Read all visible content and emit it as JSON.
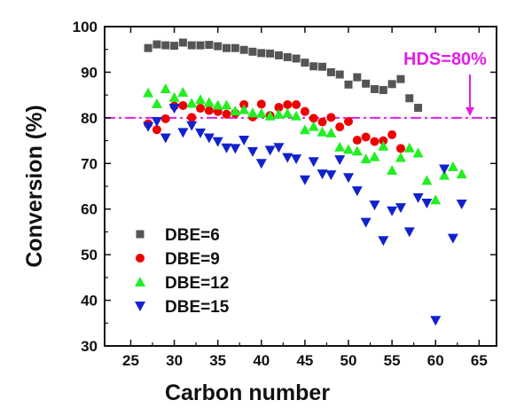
{
  "chart_data": {
    "type": "scatter",
    "xlabel": "Carbon number",
    "ylabel": "Conversion (%)",
    "xlim": [
      22,
      67
    ],
    "ylim": [
      30,
      100
    ],
    "xticks": [
      25,
      30,
      35,
      40,
      45,
      50,
      55,
      60,
      65
    ],
    "yticks": [
      30,
      40,
      50,
      60,
      70,
      80,
      90,
      100
    ],
    "x_tick_labels": [
      "25",
      "30",
      "35",
      "40",
      "45",
      "50",
      "55",
      "60",
      "65"
    ],
    "y_tick_labels": [
      "30",
      "40",
      "50",
      "60",
      "70",
      "80",
      "90",
      "100"
    ],
    "grid": false,
    "legend_position": "lower-left",
    "reference_line": {
      "value": 80,
      "label": "HDS=80%",
      "color": "#e11ee8"
    },
    "series": [
      {
        "name": "DBE=6",
        "marker": "square",
        "color": "#555555",
        "points": [
          [
            27,
            95.3
          ],
          [
            28,
            96.1
          ],
          [
            29,
            95.9
          ],
          [
            30,
            95.8
          ],
          [
            31,
            96.5
          ],
          [
            32,
            95.9
          ],
          [
            33,
            95.9
          ],
          [
            34,
            96.0
          ],
          [
            35,
            95.7
          ],
          [
            36,
            95.3
          ],
          [
            37,
            95.3
          ],
          [
            38,
            94.9
          ],
          [
            39,
            94.5
          ],
          [
            40,
            94.2
          ],
          [
            41,
            94.1
          ],
          [
            42,
            93.7
          ],
          [
            43,
            93.3
          ],
          [
            44,
            93.0
          ],
          [
            45,
            92.1
          ],
          [
            46,
            91.3
          ],
          [
            47,
            91.2
          ],
          [
            48,
            90.0
          ],
          [
            49,
            89.5
          ],
          [
            50,
            87.3
          ],
          [
            51,
            88.9
          ],
          [
            52,
            87.5
          ],
          [
            53,
            86.3
          ],
          [
            54,
            86.1
          ],
          [
            55,
            87.4
          ],
          [
            56,
            88.5
          ],
          [
            57,
            84.3
          ],
          [
            58,
            82.2
          ]
        ]
      },
      {
        "name": "DBE=9",
        "marker": "circle",
        "color": "#ee0000",
        "points": [
          [
            27,
            78.7
          ],
          [
            28,
            77.4
          ],
          [
            29,
            79.8
          ],
          [
            30,
            82.6
          ],
          [
            31,
            82.7
          ],
          [
            32,
            80.1
          ],
          [
            33,
            82.1
          ],
          [
            34,
            81.6
          ],
          [
            35,
            81.4
          ],
          [
            36,
            80.8
          ],
          [
            37,
            81.0
          ],
          [
            38,
            82.9
          ],
          [
            39,
            80.2
          ],
          [
            40,
            83.0
          ],
          [
            41,
            80.5
          ],
          [
            42,
            82.3
          ],
          [
            43,
            82.9
          ],
          [
            44,
            82.9
          ],
          [
            45,
            81.4
          ],
          [
            46,
            79.9
          ],
          [
            47,
            79.1
          ],
          [
            48,
            80.1
          ],
          [
            49,
            78.0
          ],
          [
            50,
            79.2
          ],
          [
            51,
            75.1
          ],
          [
            52,
            75.8
          ],
          [
            53,
            74.8
          ],
          [
            54,
            75.0
          ],
          [
            55,
            76.3
          ],
          [
            56,
            73.3
          ]
        ]
      },
      {
        "name": "DBE=12",
        "marker": "triangle-up",
        "color": "#22ee22",
        "points": [
          [
            27,
            85.5
          ],
          [
            28,
            83.1
          ],
          [
            29,
            86.4
          ],
          [
            30,
            84.5
          ],
          [
            31,
            85.6
          ],
          [
            32,
            83.2
          ],
          [
            33,
            84.0
          ],
          [
            34,
            83.4
          ],
          [
            35,
            82.8
          ],
          [
            36,
            82.8
          ],
          [
            37,
            81.5
          ],
          [
            38,
            81.8
          ],
          [
            39,
            81.1
          ],
          [
            40,
            81.0
          ],
          [
            41,
            80.4
          ],
          [
            42,
            80.8
          ],
          [
            43,
            81.0
          ],
          [
            44,
            80.4
          ],
          [
            45,
            77.4
          ],
          [
            46,
            78.1
          ],
          [
            47,
            76.9
          ],
          [
            48,
            76.7
          ],
          [
            49,
            73.6
          ],
          [
            50,
            73.1
          ],
          [
            51,
            72.7
          ],
          [
            52,
            71.0
          ],
          [
            53,
            71.5
          ],
          [
            54,
            73.8
          ],
          [
            55,
            68.5
          ],
          [
            56,
            71.3
          ],
          [
            57,
            73.4
          ],
          [
            58,
            72.3
          ],
          [
            59,
            66.3
          ],
          [
            60,
            62.0
          ],
          [
            61,
            67.4
          ],
          [
            62,
            69.3
          ],
          [
            63,
            67.7
          ]
        ]
      },
      {
        "name": "DBE=15",
        "marker": "triangle-down",
        "color": "#1122cc",
        "points": [
          [
            27,
            78.1
          ],
          [
            28,
            79.2
          ],
          [
            29,
            75.6
          ],
          [
            30,
            82.1
          ],
          [
            31,
            76.8
          ],
          [
            32,
            78.3
          ],
          [
            33,
            76.7
          ],
          [
            34,
            75.6
          ],
          [
            35,
            74.8
          ],
          [
            36,
            73.4
          ],
          [
            37,
            73.3
          ],
          [
            38,
            75.1
          ],
          [
            39,
            72.6
          ],
          [
            40,
            70.0
          ],
          [
            41,
            72.9
          ],
          [
            42,
            73.5
          ],
          [
            43,
            71.3
          ],
          [
            44,
            71.0
          ],
          [
            45,
            66.4
          ],
          [
            46,
            70.4
          ],
          [
            47,
            67.7
          ],
          [
            48,
            67.5
          ],
          [
            49,
            70.8
          ],
          [
            50,
            66.9
          ],
          [
            51,
            64.0
          ],
          [
            52,
            57.1
          ],
          [
            53,
            60.9
          ],
          [
            54,
            53.1
          ],
          [
            55,
            59.6
          ],
          [
            56,
            60.3
          ],
          [
            57,
            55.0
          ],
          [
            58,
            62.5
          ],
          [
            59,
            61.3
          ],
          [
            60,
            35.6
          ],
          [
            61,
            68.8
          ],
          [
            62,
            53.6
          ],
          [
            63,
            61.1
          ]
        ]
      }
    ]
  }
}
